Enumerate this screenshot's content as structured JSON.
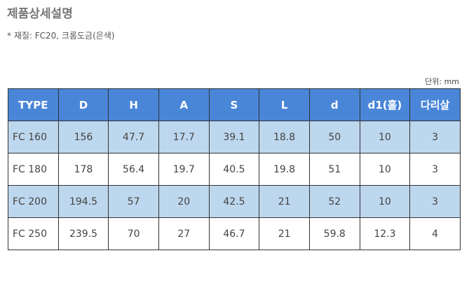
{
  "header": {
    "title": "제품상세설명",
    "note": "* 재질: FC20, 크롬도금(은색)"
  },
  "table": {
    "unit": "단위: mm",
    "columns": [
      "TYPE",
      "D",
      "H",
      "A",
      "S",
      "L",
      "d",
      "d1(홀)",
      "다리살"
    ],
    "rows": [
      [
        "FC 160",
        156,
        47.7,
        17.7,
        39.1,
        18.8,
        50,
        10,
        3
      ],
      [
        "FC 180",
        178,
        56.4,
        19.7,
        40.5,
        19.8,
        51,
        10,
        3
      ],
      [
        "FC 200",
        194.5,
        57,
        20,
        42.5,
        21,
        52,
        10,
        3
      ],
      [
        "FC 250",
        239.5,
        70,
        27,
        46.7,
        21,
        59.8,
        12.3,
        4
      ]
    ]
  }
}
